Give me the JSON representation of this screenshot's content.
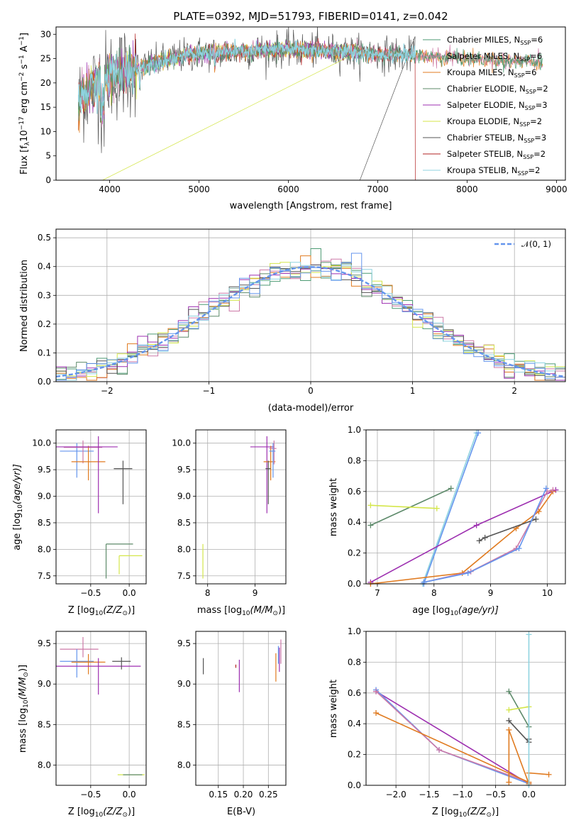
{
  "colors": {
    "chabrier_miles": "#4c9a73",
    "salpeter_miles": "#cc79a7",
    "kroupa_miles": "#e07b20",
    "chabrier_elodie": "#5d8a6a",
    "salpeter_elodie": "#9d2fb0",
    "kroupa_elodie": "#d4e64a",
    "chabrier_stelib": "#555555",
    "salpeter_stelib": "#b22222",
    "kroupa_stelib": "#8fd3e0",
    "blue": "#6495ed",
    "grid": "#b0b0b0"
  },
  "chart_data": [
    {
      "id": "spectrum",
      "type": "line",
      "title": "PLATE=0392, MJD=51793, FIBERID=0141, z=0.042",
      "xlabel": "wavelength [Angstrom, rest frame]",
      "ylabel": "Flux [f$_\\lambda$10$^{-17}$ erg cm$^{-2}$ s$^{-1}$ A$^{-1}$]",
      "ylabel_main": "Flux [f",
      "ylabel_lambda": "λ",
      "ylabel_mid": "10",
      "ylabel_exp1": "−17",
      "ylabel_unit1": " erg cm",
      "ylabel_exp2": "−2",
      "ylabel_unit2": " s",
      "ylabel_exp3": "−1",
      "ylabel_unit3": " A",
      "ylabel_exp4": "−1",
      "ylabel_end": "]",
      "xlim": [
        3400,
        9100
      ],
      "ylim": [
        0,
        31.5
      ],
      "xticks": [
        4000,
        5000,
        6000,
        7000,
        8000,
        9000
      ],
      "yticks": [
        0,
        5,
        10,
        15,
        20,
        25,
        30
      ],
      "legend": [
        {
          "label": "Chabrier MILES, N",
          "n": "6",
          "color_key": "chabrier_miles"
        },
        {
          "label": "Salpeter MILES, N",
          "n": "6",
          "color_key": "salpeter_miles"
        },
        {
          "label": "Kroupa MILES, N",
          "n": "6",
          "color_key": "kroupa_miles"
        },
        {
          "label": "Chabrier ELODIE, N",
          "n": "2",
          "color_key": "chabrier_elodie"
        },
        {
          "label": "Salpeter ELODIE, N",
          "n": "3",
          "color_key": "salpeter_elodie"
        },
        {
          "label": "Kroupa ELODIE, N",
          "n": "2",
          "color_key": "kroupa_elodie"
        },
        {
          "label": "Chabrier STELIB, N",
          "n": "3",
          "color_key": "chabrier_stelib"
        },
        {
          "label": "Salpeter STELIB, N",
          "n": "2",
          "color_key": "salpeter_stelib"
        },
        {
          "label": "Kroupa STELIB, N",
          "n": "2",
          "color_key": "kroupa_stelib"
        }
      ],
      "legend_sub": "SSP",
      "continuum": [
        [
          3650,
          16
        ],
        [
          3700,
          17.5
        ],
        [
          3800,
          19
        ],
        [
          3900,
          20.5
        ],
        [
          4000,
          21.5
        ],
        [
          4200,
          22.5
        ],
        [
          4500,
          24
        ],
        [
          4800,
          25.5
        ],
        [
          5000,
          26
        ],
        [
          5500,
          26.5
        ],
        [
          6000,
          27
        ],
        [
          6500,
          26.5
        ],
        [
          7000,
          26
        ],
        [
          7500,
          25.5
        ],
        [
          8000,
          25
        ],
        [
          8500,
          24.5
        ],
        [
          8850,
          24.2
        ]
      ],
      "drops": [
        [
          3920,
          0,
          "kroupa_elodie"
        ],
        [
          6800,
          0,
          "chabrier_stelib"
        ],
        [
          7420,
          0,
          "salpeter_stelib"
        ]
      ],
      "data_end": {
        "miles": 8850,
        "elodie": 6800,
        "stelib": 7420
      }
    },
    {
      "id": "residuals",
      "type": "histogram",
      "xlabel": "(data-model)/error",
      "ylabel": "Normed distribution",
      "xlim": [
        -2.5,
        2.5
      ],
      "ylim": [
        0,
        0.53
      ],
      "xticks": [
        -2,
        -1,
        0,
        1,
        2
      ],
      "xticklabels": [
        "−2",
        "−1",
        "0",
        "1",
        "2"
      ],
      "yticks": [
        0,
        0.1,
        0.2,
        0.3,
        0.4,
        0.5
      ],
      "yticklabels": [
        "0.0",
        "0.1",
        "0.2",
        "0.3",
        "0.4",
        "0.5"
      ],
      "legend": "𝒩(0, 1)",
      "bin_width": 0.1,
      "series_keys": [
        "chabrier_miles",
        "salpeter_miles",
        "kroupa_miles",
        "chabrier_elodie",
        "salpeter_elodie",
        "kroupa_elodie",
        "chabrier_stelib",
        "kroupa_stelib",
        "blue"
      ]
    },
    {
      "id": "age_vs_z",
      "type": "errorbar",
      "xlabel_pre": "Z [log",
      "xlabel_sub": "10",
      "xlabel_post": "(Z/Z",
      "xlabel_sun": "⊙",
      "xlabel_end": ")]",
      "ylabel": "age  [log10(age/yr)]",
      "ylabel_pre": "age  [log",
      "ylabel_sub": "10",
      "ylabel_post": "(age/yr)]",
      "xlim": [
        -0.95,
        0.22
      ],
      "ylim": [
        7.35,
        10.25
      ],
      "xticks": [
        -0.5,
        0.0
      ],
      "xticklabels": [
        "−0.5",
        "0.0"
      ],
      "yticks": [
        7.5,
        8.0,
        8.5,
        9.0,
        9.5,
        10.0
      ],
      "yticklabels": [
        "7.5",
        "8.0",
        "8.5",
        "9.0",
        "9.5",
        "10.0"
      ],
      "points": [
        {
          "x": -0.68,
          "y": 9.85,
          "xerr": [
            0.22,
            0.22
          ],
          "yerr": [
            0.5,
            0.15
          ],
          "c": "blue"
        },
        {
          "x": -0.6,
          "y": 9.92,
          "xerr": [
            0.25,
            0.25
          ],
          "yerr": [
            0.3,
            0.13
          ],
          "c": "salpeter_miles"
        },
        {
          "x": -0.53,
          "y": 9.65,
          "xerr": [
            0.22,
            0.22
          ],
          "yerr": [
            0.35,
            0.3
          ],
          "c": "kroupa_miles"
        },
        {
          "x": -0.4,
          "y": 9.93,
          "xerr": [
            0.55,
            0.25
          ],
          "yerr": [
            1.25,
            0.2
          ],
          "c": "salpeter_elodie"
        },
        {
          "x": -0.08,
          "y": 9.52,
          "xerr": [
            0.12,
            0.12
          ],
          "yerr": [
            0.67,
            0.15
          ],
          "c": "chabrier_stelib"
        },
        {
          "x": -0.3,
          "y": 8.1,
          "xerr": [
            0,
            0.35
          ],
          "yerr": [
            0.65,
            0
          ],
          "c": "chabrier_elodie"
        },
        {
          "x": -0.13,
          "y": 7.88,
          "xerr": [
            0,
            0.3
          ],
          "yerr": [
            0.35,
            0
          ],
          "c": "kroupa_elodie"
        }
      ]
    },
    {
      "id": "age_vs_mass",
      "type": "errorbar",
      "xlabel_pre": "mass [log",
      "xlabel_sub": "10",
      "xlabel_post": "(M/M",
      "xlabel_sun": "⊙",
      "xlabel_end": ")]",
      "xlim": [
        7.75,
        9.65
      ],
      "ylim": [
        7.35,
        10.25
      ],
      "xticks": [
        8,
        9
      ],
      "xticklabels": [
        "8",
        "9"
      ],
      "yticks": [
        7.5,
        8.0,
        8.5,
        9.0,
        9.5,
        10.0
      ],
      "yticklabels": [
        "7.5",
        "8.0",
        "8.5",
        "9.0",
        "9.5",
        "10.0"
      ],
      "points": [
        {
          "x": 9.25,
          "y": 9.93,
          "xerr": [
            0.35,
            0.15
          ],
          "yerr": [
            1.25,
            0.2
          ],
          "c": "salpeter_elodie"
        },
        {
          "x": 9.33,
          "y": 9.65,
          "xerr": [
            0.15,
            0.1
          ],
          "yerr": [
            0.35,
            0.3
          ],
          "c": "kroupa_miles"
        },
        {
          "x": 9.4,
          "y": 9.9,
          "xerr": [
            0.1,
            0.05
          ],
          "yerr": [
            0.3,
            0.15
          ],
          "c": "salpeter_miles"
        },
        {
          "x": 9.38,
          "y": 9.85,
          "xerr": [
            0.08,
            0.05
          ],
          "yerr": [
            0.5,
            0.15
          ],
          "c": "blue"
        },
        {
          "x": 9.28,
          "y": 9.52,
          "xerr": [
            0.06,
            0.05
          ],
          "yerr": [
            0.67,
            0.15
          ],
          "c": "chabrier_stelib"
        },
        {
          "x": 7.9,
          "y": 7.8,
          "xerr": [
            0,
            0
          ],
          "yerr": [
            0.35,
            0.3
          ],
          "c": "kroupa_elodie"
        }
      ]
    },
    {
      "id": "weight_vs_age",
      "type": "line",
      "xlabel_pre": "age  [log",
      "xlabel_sub": "10",
      "xlabel_post": "(age/yr)]",
      "ylabel": "mass weight",
      "xlim": [
        6.8,
        10.32
      ],
      "ylim": [
        0,
        1
      ],
      "xticks": [
        7,
        8,
        9,
        10
      ],
      "xticklabels": [
        "7",
        "8",
        "9",
        "10"
      ],
      "yticks": [
        0,
        0.2,
        0.4,
        0.6,
        0.8,
        1.0
      ],
      "yticklabels": [
        "0.0",
        "0.2",
        "0.4",
        "0.6",
        "0.8",
        "1.0"
      ],
      "series": [
        {
          "c": "chabrier_elodie",
          "pts": [
            [
              6.88,
              0.38
            ],
            [
              8.3,
              0.62
            ]
          ]
        },
        {
          "c": "kroupa_elodie",
          "pts": [
            [
              6.88,
              0.51
            ],
            [
              8.05,
              0.49
            ]
          ]
        },
        {
          "c": "kroupa_stelib",
          "pts": [
            [
              7.8,
              0.0
            ],
            [
              8.75,
              0.98
            ]
          ]
        },
        {
          "c": "blue",
          "pts": [
            [
              7.82,
              0.0
            ],
            [
              8.78,
              0.98
            ]
          ]
        },
        {
          "c": "salpeter_elodie",
          "pts": [
            [
              6.88,
              0.01
            ],
            [
              8.75,
              0.38
            ],
            [
              10.15,
              0.61
            ]
          ]
        },
        {
          "c": "kroupa_miles",
          "pts": [
            [
              6.88,
              0.0
            ],
            [
              8.5,
              0.07
            ],
            [
              9.45,
              0.36
            ],
            [
              9.85,
              0.47
            ],
            [
              10.1,
              0.6
            ]
          ]
        },
        {
          "c": "salpeter_miles",
          "pts": [
            [
              7.82,
              0.01
            ],
            [
              8.65,
              0.08
            ],
            [
              9.45,
              0.23
            ],
            [
              10.0,
              0.6
            ],
            [
              10.1,
              0.61
            ]
          ]
        },
        {
          "c": "chabrier_stelib",
          "pts": [
            [
              8.8,
              0.28
            ],
            [
              8.9,
              0.3
            ],
            [
              9.8,
              0.42
            ]
          ]
        },
        {
          "c": "blue",
          "pts": [
            [
              7.82,
              0.01
            ],
            [
              8.6,
              0.07
            ],
            [
              9.5,
              0.23
            ],
            [
              9.98,
              0.62
            ]
          ]
        }
      ]
    },
    {
      "id": "mass_vs_z",
      "type": "errorbar",
      "xlabel_pre": "Z [log",
      "xlabel_sub": "10",
      "xlabel_post": "(Z/Z",
      "xlabel_sun": "⊙",
      "xlabel_end": ")]",
      "ylabel_pre": "mass [log",
      "ylabel_sub": "10",
      "ylabel_post": "(M/M",
      "ylabel_sun": "⊙",
      "ylabel_end": ")]",
      "xlim": [
        -0.95,
        0.22
      ],
      "ylim": [
        7.75,
        9.65
      ],
      "xticks": [
        -0.5,
        0.0
      ],
      "xticklabels": [
        "−0.5",
        "0.0"
      ],
      "yticks": [
        8.0,
        8.5,
        9.0,
        9.5
      ],
      "yticklabels": [
        "8.0",
        "8.5",
        "9.0",
        "9.5"
      ],
      "points": [
        {
          "x": -0.6,
          "y": 9.43,
          "xerr": [
            0.3,
            0.2
          ],
          "yerr": [
            0.1,
            0.15
          ],
          "c": "salpeter_miles"
        },
        {
          "x": -0.68,
          "y": 9.28,
          "xerr": [
            0.22,
            0.22
          ],
          "yerr": [
            0.2,
            0.15
          ],
          "c": "blue"
        },
        {
          "x": -0.53,
          "y": 9.27,
          "xerr": [
            0.22,
            0.22
          ],
          "yerr": [
            0.15,
            0.1
          ],
          "c": "kroupa_miles"
        },
        {
          "x": -0.4,
          "y": 9.22,
          "xerr": [
            0.55,
            0.55
          ],
          "yerr": [
            0.35,
            0.1
          ],
          "c": "salpeter_elodie"
        },
        {
          "x": -0.1,
          "y": 9.28,
          "xerr": [
            0.12,
            0.12
          ],
          "yerr": [
            0.1,
            0.05
          ],
          "c": "chabrier_stelib"
        },
        {
          "x": 0.0,
          "y": 7.88,
          "xerr": [
            0.15,
            0.2
          ],
          "yerr": [
            0,
            0
          ],
          "c": "kroupa_elodie"
        },
        {
          "x": 0.02,
          "y": 7.88,
          "xerr": [
            0.1,
            0.15
          ],
          "yerr": [
            0,
            0
          ],
          "c": "chabrier_elodie"
        }
      ]
    },
    {
      "id": "mass_vs_ebv",
      "type": "errorbar",
      "xlabel": "E(B-V)",
      "xlim": [
        0.105,
        0.285
      ],
      "ylim": [
        7.75,
        9.65
      ],
      "xticks": [
        0.15,
        0.2,
        0.25
      ],
      "xticklabels": [
        "0.15",
        "0.20",
        "0.25"
      ],
      "yticks": [
        8.0,
        8.5,
        9.0,
        9.5
      ],
      "yticklabels": [
        "8.0",
        "8.5",
        "9.0",
        "9.5"
      ],
      "points": [
        {
          "x": 0.12,
          "y": 9.22,
          "xerr": [
            0,
            0
          ],
          "yerr": [
            0.1,
            0.1
          ],
          "c": "chabrier_stelib"
        },
        {
          "x": 0.185,
          "y": 9.22,
          "xerr": [
            0,
            0
          ],
          "yerr": [
            0.02,
            0.02
          ],
          "c": "salpeter_stelib"
        },
        {
          "x": 0.192,
          "y": 9.1,
          "xerr": [
            0,
            0
          ],
          "yerr": [
            0.2,
            0.2
          ],
          "c": "salpeter_elodie"
        },
        {
          "x": 0.265,
          "y": 9.18,
          "xerr": [
            0,
            0
          ],
          "yerr": [
            0.15,
            0.2
          ],
          "c": "kroupa_miles"
        },
        {
          "x": 0.27,
          "y": 9.35,
          "xerr": [
            0,
            0
          ],
          "yerr": [
            0.1,
            0.12
          ],
          "c": "blue"
        },
        {
          "x": 0.272,
          "y": 9.35,
          "xerr": [
            0,
            0
          ],
          "yerr": [
            0.2,
            0.1
          ],
          "c": "salpeter_elodie"
        },
        {
          "x": 0.275,
          "y": 9.4,
          "xerr": [
            0,
            0
          ],
          "yerr": [
            0.15,
            0.15
          ],
          "c": "salpeter_miles"
        }
      ]
    },
    {
      "id": "weight_vs_z",
      "type": "line",
      "xlabel_pre": "Z [log",
      "xlabel_sub": "10",
      "xlabel_post": "(Z/Z",
      "xlabel_sun": "⊙",
      "xlabel_end": ")]",
      "ylabel": "mass weight",
      "xlim": [
        -2.45,
        0.55
      ],
      "ylim": [
        0,
        1
      ],
      "xticks": [
        -2.0,
        -1.5,
        -1.0,
        -0.5,
        0.0
      ],
      "xticklabels": [
        "−2.0",
        "−1.5",
        "−1.0",
        "−0.5",
        "0.0"
      ],
      "yticks": [
        0,
        0.2,
        0.4,
        0.6,
        0.8,
        1.0
      ],
      "yticklabels": [
        "0.0",
        "0.2",
        "0.4",
        "0.6",
        "0.8",
        "1.0"
      ],
      "series": [
        {
          "c": "salpeter_elodie",
          "pts": [
            [
              -2.3,
              0.61
            ],
            [
              0.0,
              0.01
            ]
          ]
        },
        {
          "c": "blue",
          "pts": [
            [
              -2.3,
              0.62
            ],
            [
              -1.35,
              0.23
            ],
            [
              0.0,
              0.01
            ]
          ]
        },
        {
          "c": "salpeter_miles",
          "pts": [
            [
              -2.3,
              0.61
            ],
            [
              -1.35,
              0.23
            ],
            [
              0.0,
              0.02
            ]
          ]
        },
        {
          "c": "kroupa_miles",
          "pts": [
            [
              -2.3,
              0.47
            ],
            [
              0.0,
              0.02
            ],
            [
              0.0,
              0.08
            ],
            [
              0.3,
              0.07
            ]
          ]
        },
        {
          "c": "kroupa_miles",
          "pts": [
            [
              -0.3,
              0.02
            ],
            [
              -0.3,
              0.36
            ],
            [
              0.0,
              0.01
            ]
          ]
        },
        {
          "c": "chabrier_elodie",
          "pts": [
            [
              -0.3,
              0.61
            ],
            [
              0.0,
              0.38
            ]
          ]
        },
        {
          "c": "kroupa_elodie",
          "pts": [
            [
              -0.3,
              0.49
            ],
            [
              0.0,
              0.51
            ]
          ]
        },
        {
          "c": "chabrier_stelib",
          "pts": [
            [
              -0.3,
              0.42
            ],
            [
              0.0,
              0.28
            ],
            [
              0.0,
              0.3
            ]
          ]
        },
        {
          "c": "kroupa_stelib",
          "pts": [
            [
              0.0,
              0.0
            ],
            [
              0.0,
              0.98
            ]
          ]
        }
      ]
    }
  ]
}
